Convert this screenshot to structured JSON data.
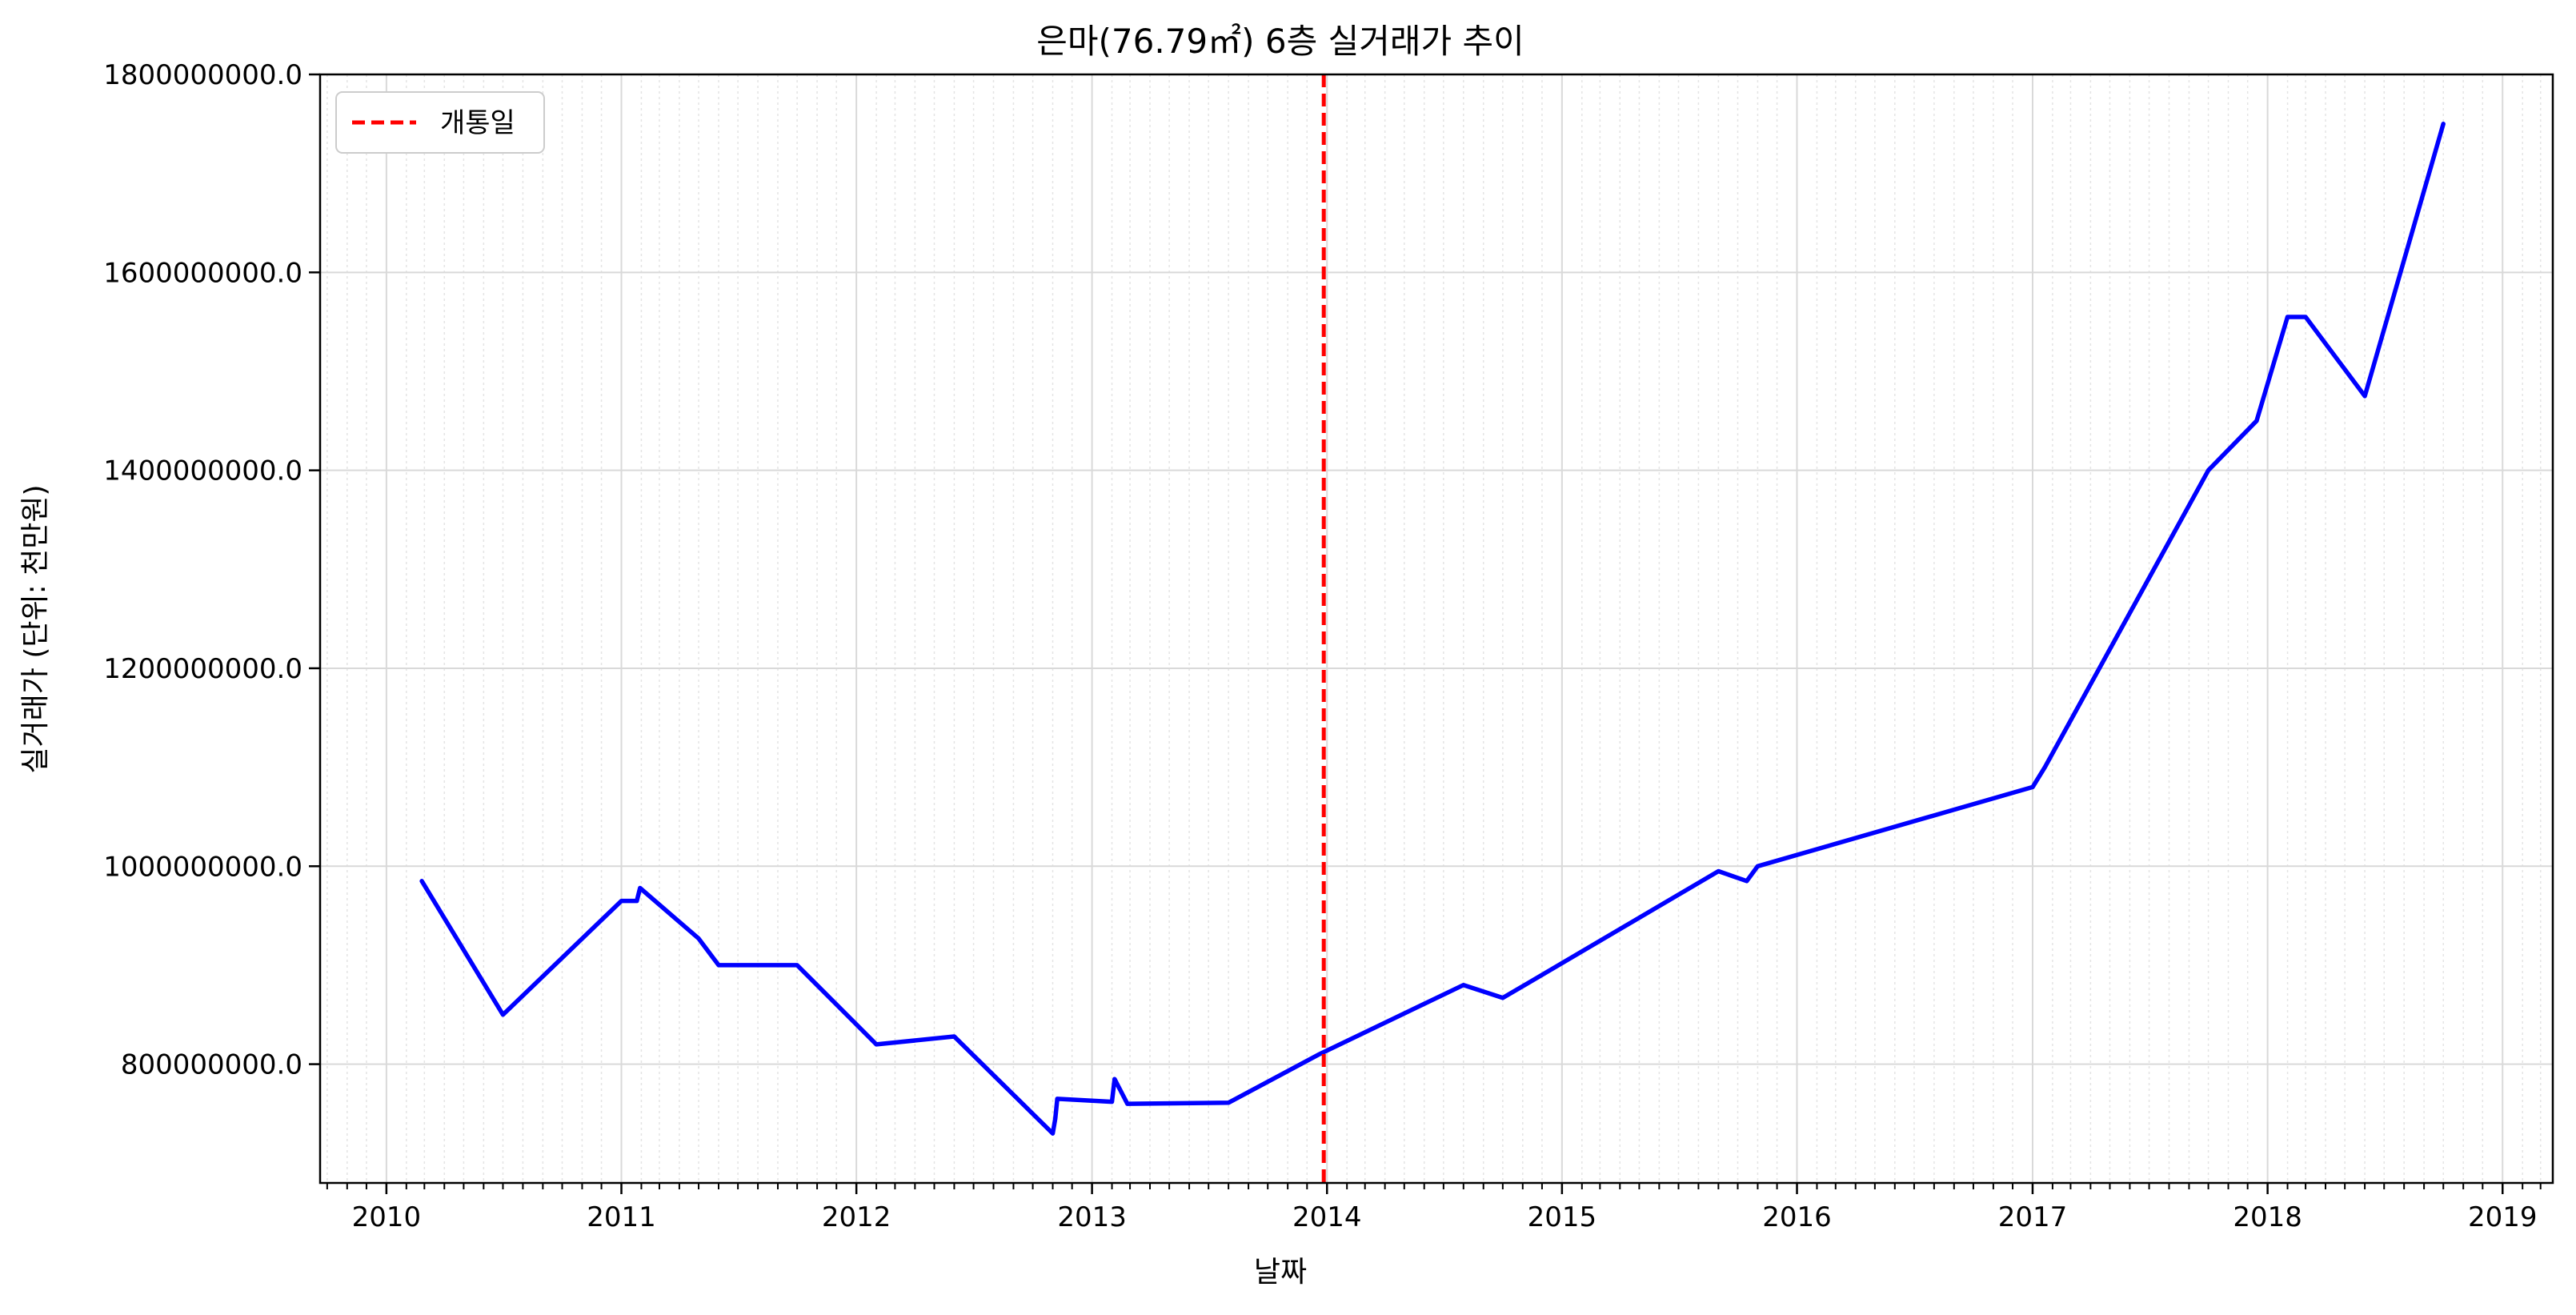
{
  "chart_data": {
    "type": "line",
    "title": "은마(76.79㎡) 6층 실거래가 추이",
    "xlabel": "날짜",
    "ylabel": "실거래가 (단위: 천만원)",
    "xlim": [
      "2009-09-20",
      "2019-03-20"
    ],
    "ylim": [
      680000000,
      1800000000
    ],
    "x_ticks": [
      "2010",
      "2011",
      "2012",
      "2013",
      "2014",
      "2015",
      "2016",
      "2017",
      "2018",
      "2019"
    ],
    "y_ticks": [
      800000000,
      1000000000,
      1200000000,
      1400000000,
      1600000000,
      1800000000
    ],
    "y_tick_labels": [
      "800000000.0",
      "1000000000.0",
      "1200000000.0",
      "1400000000.0",
      "1600000000.0",
      "1800000000.0"
    ],
    "grid": true,
    "legend_position": "upper left",
    "series": [
      {
        "color": "#0000ff",
        "x": [
          "2010-02-25",
          "2010-07-01",
          "2011-01-01",
          "2011-01-25",
          "2011-01-30",
          "2011-05-01",
          "2011-06-01",
          "2011-10-01",
          "2012-02-01",
          "2012-06-01",
          "2012-11-01",
          "2012-11-05",
          "2012-11-08",
          "2013-02-01",
          "2013-02-05",
          "2013-02-25",
          "2013-08-01",
          "2013-12-20",
          "2014-08-01",
          "2014-10-01",
          "2015-09-01",
          "2015-10-15",
          "2015-11-01",
          "2017-01-01",
          "2017-01-20",
          "2017-10-01",
          "2017-12-15",
          "2018-02-01",
          "2018-03-01",
          "2018-06-01",
          "2018-10-01"
        ],
        "values": [
          985000000,
          850000000,
          965000000,
          965000000,
          978000000,
          927000000,
          900000000,
          900000000,
          820000000,
          828000000,
          730000000,
          745000000,
          765000000,
          762000000,
          785000000,
          760000000,
          761000000,
          810000000,
          880000000,
          867000000,
          995000000,
          985000000,
          1000000000,
          1080000000,
          1100000000,
          1400000000,
          1450000000,
          1555000000,
          1555000000,
          1475000000,
          1750000000
        ]
      }
    ],
    "vline": {
      "x": "2013-12-27",
      "label": "개통일",
      "color": "#ff0000",
      "style": "dashed"
    }
  }
}
